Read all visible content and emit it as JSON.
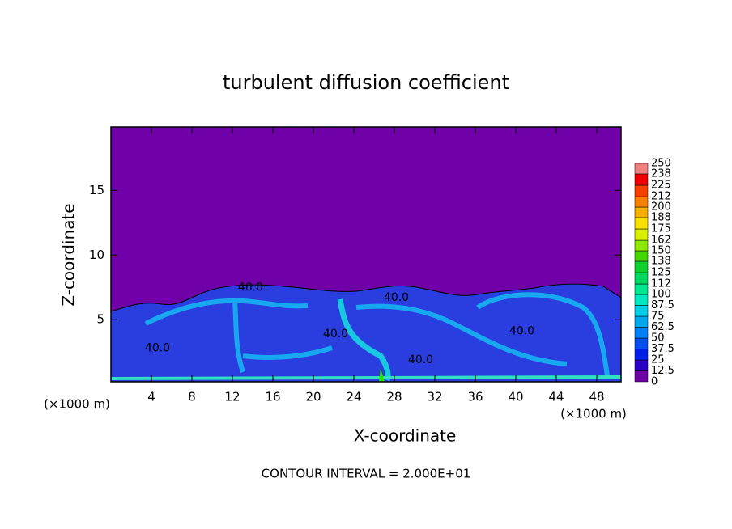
{
  "chart_data": {
    "type": "contour",
    "title": "turbulent diffusion coefficient",
    "x_label": "X-coordinate",
    "y_label": "Z-coordinate",
    "x_unit_left": "(×1000 m)",
    "x_unit_right": "(×1000 m)",
    "footer": "CONTOUR INTERVAL = 2.000E+01",
    "xlim": [
      0,
      50.4
    ],
    "ylim": [
      0.2,
      19.9
    ],
    "xticks": [
      4,
      8,
      12,
      16,
      20,
      24,
      28,
      32,
      36,
      40,
      44,
      48
    ],
    "yticks": [
      5,
      10,
      15
    ],
    "annotations": [
      {
        "text": "40.0",
        "x": 13.8,
        "y": 7.5
      },
      {
        "text": "40.0",
        "x": 28.2,
        "y": 6.7
      },
      {
        "text": "40.0",
        "x": 22.2,
        "y": 3.9
      },
      {
        "text": "40.0",
        "x": 30.6,
        "y": 1.9
      },
      {
        "text": "40.0",
        "x": 40.6,
        "y": 4.1
      },
      {
        "text": "40.0",
        "x": 4.6,
        "y": 2.8
      }
    ],
    "colorbar": {
      "levels": [
        0,
        12.5,
        25,
        37.5,
        50,
        62.5,
        75,
        87.5,
        100,
        112,
        125,
        138,
        150,
        162,
        175,
        188,
        200,
        212,
        225,
        238,
        250
      ],
      "colors": [
        "#7000a8",
        "#2800c8",
        "#0020e8",
        "#0050f0",
        "#0080f8",
        "#00a8f0",
        "#00d0e8",
        "#00e8c0",
        "#00e890",
        "#00d860",
        "#10d030",
        "#40d800",
        "#90e800",
        "#d8f000",
        "#f8e000",
        "#f8b000",
        "#f88000",
        "#f84000",
        "#f00000",
        "#f08080"
      ]
    }
  }
}
